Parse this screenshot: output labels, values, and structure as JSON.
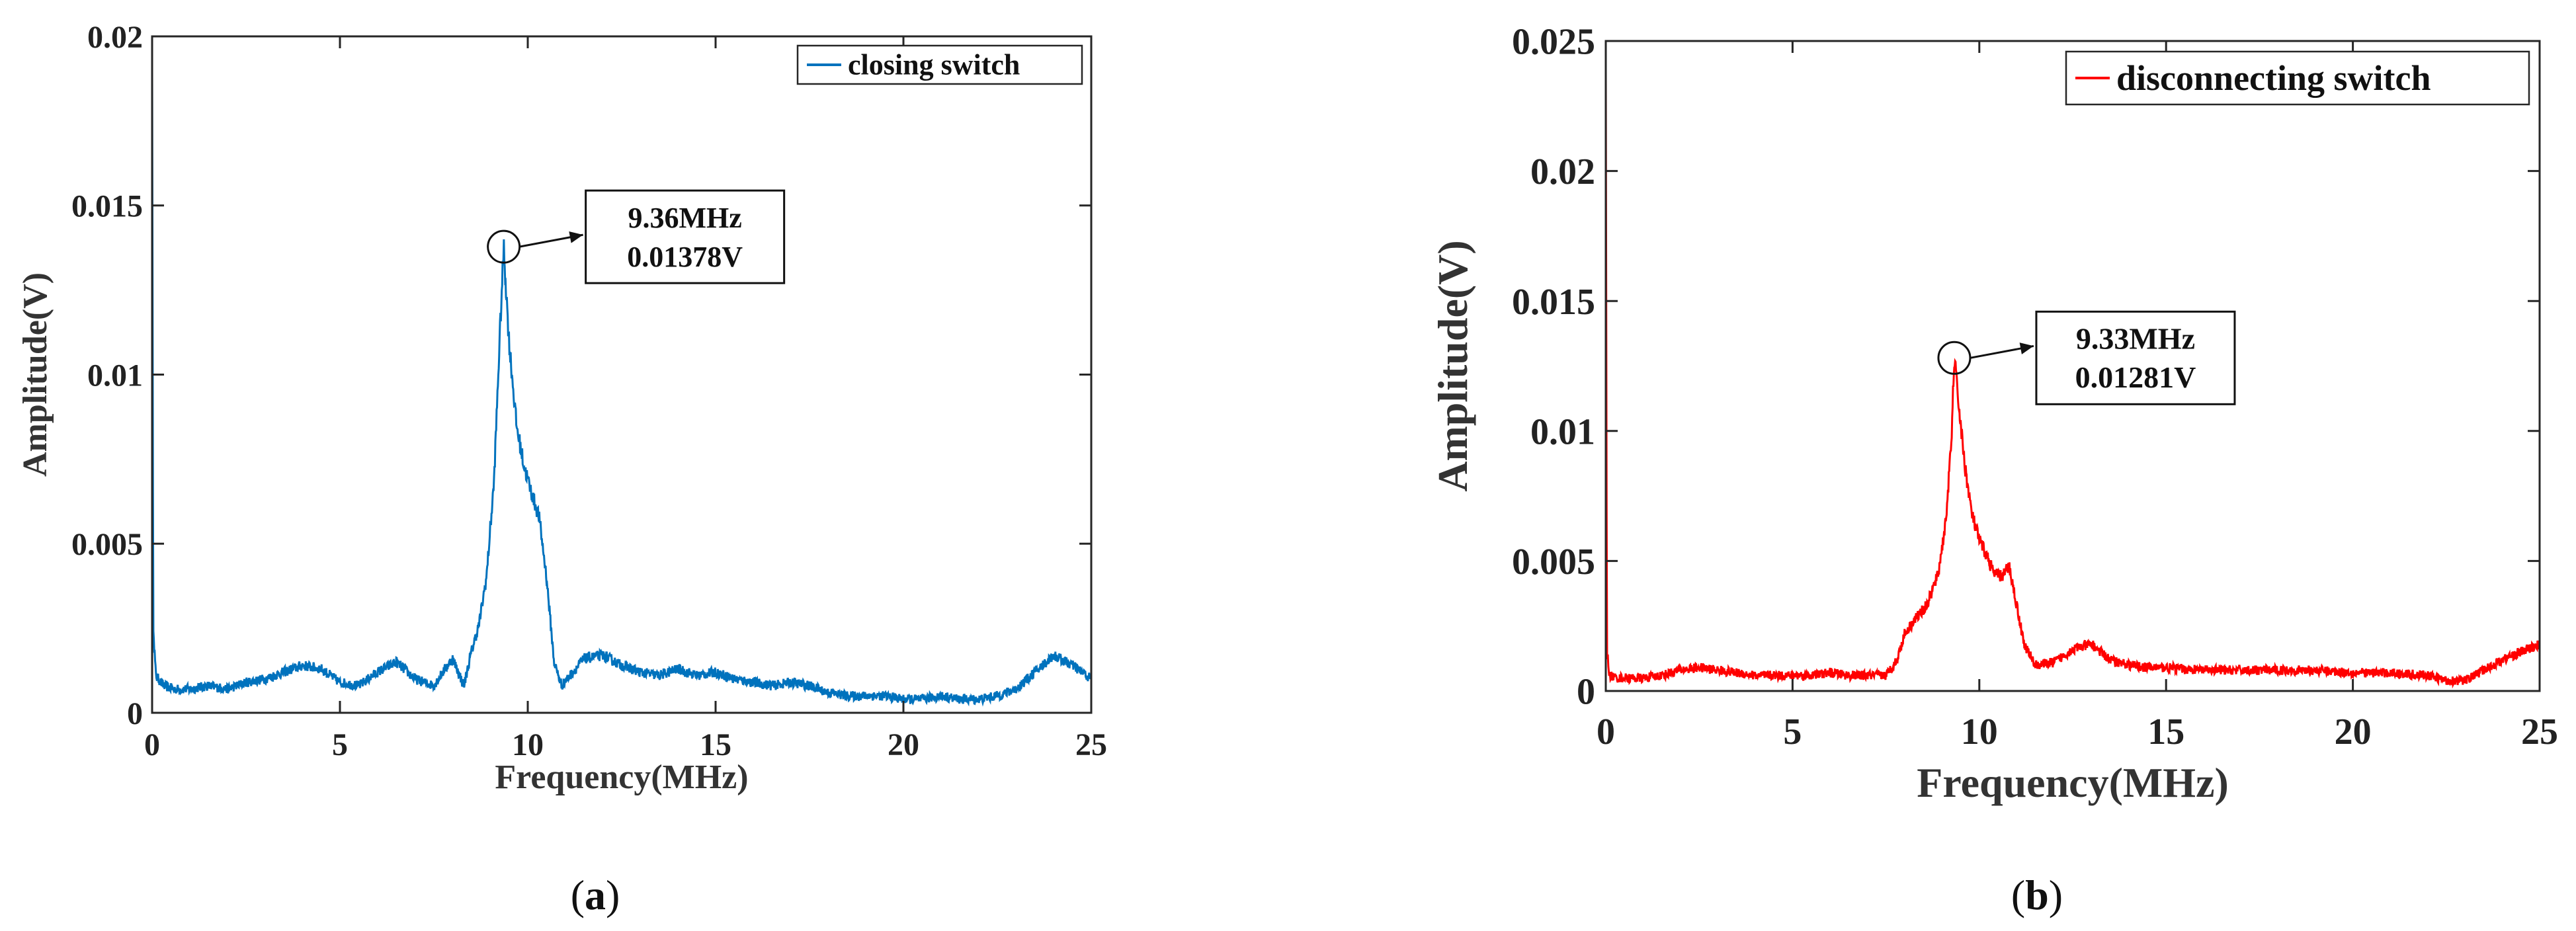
{
  "chart_data": [
    {
      "panel": "(a)",
      "panel_letter": "a",
      "type": "line",
      "xlabel": "Frequency(MHz)",
      "ylabel": "Amplitude(V)",
      "xlim": [
        0,
        25
      ],
      "ylim": [
        0,
        0.02
      ],
      "xticks": [
        0,
        5,
        10,
        15,
        20,
        25
      ],
      "xtick_labels": [
        "0",
        "5",
        "10",
        "15",
        "20",
        "25"
      ],
      "yticks": [
        0,
        0.005,
        0.01,
        0.015,
        0.02
      ],
      "ytick_labels": [
        "0",
        "0.005",
        "0.01",
        "0.015",
        "0.02"
      ],
      "grid": false,
      "legend_position": "top-right",
      "series": [
        {
          "name": "closing switch",
          "color": "#0072BD",
          "x": [
            0,
            0.03,
            0.1,
            0.3,
            0.6,
            1,
            1.5,
            2,
            2.5,
            3,
            3.5,
            4,
            4.5,
            5,
            5.5,
            6,
            6.5,
            7,
            7.5,
            7.8,
            8,
            8.3,
            8.5,
            8.7,
            8.9,
            9.1,
            9.25,
            9.36,
            9.5,
            9.7,
            9.9,
            10.1,
            10.3,
            10.5,
            10.7,
            10.9,
            11.2,
            11.5,
            12,
            12.5,
            13,
            13.5,
            14,
            14.5,
            15,
            15.5,
            16,
            16.5,
            17,
            17.5,
            18,
            18.5,
            19,
            19.5,
            20,
            20.5,
            21,
            21.5,
            22,
            22.5,
            23,
            23.5,
            24,
            24.5,
            25
          ],
          "y": [
            0.019,
            0.0025,
            0.0011,
            0.0008,
            0.0007,
            0.0007,
            0.0008,
            0.0007,
            0.0009,
            0.001,
            0.0012,
            0.0014,
            0.0013,
            0.0009,
            0.0008,
            0.0012,
            0.0015,
            0.001,
            0.0008,
            0.0013,
            0.0016,
            0.0008,
            0.0018,
            0.0026,
            0.004,
            0.0068,
            0.011,
            0.01378,
            0.011,
            0.0085,
            0.0073,
            0.0065,
            0.0058,
            0.004,
            0.0015,
            0.0008,
            0.0012,
            0.0016,
            0.0017,
            0.0014,
            0.0012,
            0.0011,
            0.0013,
            0.0011,
            0.0012,
            0.001,
            0.0009,
            0.0008,
            0.0009,
            0.0008,
            0.0006,
            0.0005,
            0.0005,
            0.0005,
            0.0004,
            0.0004,
            0.0005,
            0.0004,
            0.0004,
            0.0005,
            0.0007,
            0.0012,
            0.0017,
            0.0014,
            0.001
          ]
        }
      ],
      "annotation": {
        "x": 9.36,
        "y": 0.01378,
        "lines": [
          "9.36MHz",
          "0.01378V"
        ]
      }
    },
    {
      "panel": "(b)",
      "panel_letter": "b",
      "type": "line",
      "xlabel": "Frequency(MHz)",
      "ylabel": "Amplitude(V)",
      "xlim": [
        0,
        25
      ],
      "ylim": [
        0,
        0.025
      ],
      "xticks": [
        0,
        5,
        10,
        15,
        20,
        25
      ],
      "xtick_labels": [
        "0",
        "5",
        "10",
        "15",
        "20",
        "25"
      ],
      "yticks": [
        0,
        0.005,
        0.01,
        0.015,
        0.02,
        0.025
      ],
      "ytick_labels": [
        "0",
        "0.005",
        "0.01",
        "0.015",
        "0.02",
        "0.025"
      ],
      "grid": false,
      "legend_position": "top-right",
      "series": [
        {
          "name": "disconnecting switch",
          "color": "#FF0000",
          "x": [
            0,
            0.03,
            0.1,
            0.3,
            0.6,
            1,
            1.5,
            2,
            2.5,
            3,
            3.5,
            4,
            4.5,
            5,
            5.5,
            6,
            6.5,
            7,
            7.5,
            7.8,
            8,
            8.3,
            8.6,
            8.9,
            9.1,
            9.25,
            9.33,
            9.45,
            9.6,
            9.8,
            10,
            10.2,
            10.4,
            10.6,
            10.8,
            11,
            11.2,
            11.5,
            12,
            12.5,
            13,
            13.5,
            14,
            14.5,
            15,
            16,
            17,
            18,
            19,
            20,
            21,
            22,
            22.5,
            23,
            23.5,
            24,
            24.5,
            25
          ],
          "y": [
            0.024,
            0.0015,
            0.0006,
            0.0005,
            0.0005,
            0.0005,
            0.0006,
            0.0008,
            0.0009,
            0.0008,
            0.0007,
            0.0006,
            0.0006,
            0.0006,
            0.0006,
            0.0007,
            0.0006,
            0.0006,
            0.0006,
            0.0012,
            0.0022,
            0.0028,
            0.0033,
            0.0045,
            0.0065,
            0.0095,
            0.01281,
            0.011,
            0.0088,
            0.0068,
            0.0058,
            0.0052,
            0.0045,
            0.0044,
            0.0048,
            0.0033,
            0.0018,
            0.001,
            0.0011,
            0.0016,
            0.0018,
            0.0012,
            0.001,
            0.0009,
            0.0009,
            0.0008,
            0.0008,
            0.0008,
            0.0008,
            0.0007,
            0.0007,
            0.0006,
            0.0004,
            0.0004,
            0.0008,
            0.0012,
            0.0015,
            0.0018
          ]
        }
      ],
      "annotation": {
        "x": 9.33,
        "y": 0.01281,
        "lines": [
          "9.33MHz",
          "0.01281V"
        ]
      }
    }
  ]
}
